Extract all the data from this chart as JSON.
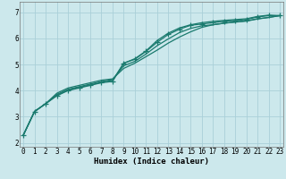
{
  "title": "",
  "xlabel": "Humidex (Indice chaleur)",
  "ylabel": "",
  "background_color": "#cce8ec",
  "grid_color": "#aad0d8",
  "line_color": "#1a7a6e",
  "x_ticks": [
    0,
    1,
    2,
    3,
    4,
    5,
    6,
    7,
    8,
    9,
    10,
    11,
    12,
    13,
    14,
    15,
    16,
    17,
    18,
    19,
    20,
    21,
    22,
    23
  ],
  "y_ticks": [
    2,
    3,
    4,
    5,
    6,
    7
  ],
  "xlim": [
    -0.3,
    23.3
  ],
  "ylim": [
    1.85,
    7.4
  ],
  "series": [
    [
      2.3,
      3.2,
      3.5,
      3.8,
      4.0,
      4.1,
      4.2,
      4.3,
      4.35,
      5.05,
      5.2,
      5.5,
      5.85,
      6.15,
      6.35,
      6.5,
      6.55,
      6.6,
      6.65,
      6.68,
      6.72,
      6.82,
      6.87,
      6.87
    ],
    [
      2.3,
      3.2,
      3.5,
      3.9,
      4.1,
      4.2,
      4.3,
      4.4,
      4.45,
      4.85,
      5.05,
      5.3,
      5.55,
      5.82,
      6.05,
      6.25,
      6.42,
      6.52,
      6.58,
      6.63,
      6.67,
      6.75,
      6.8,
      6.87
    ],
    [
      2.3,
      3.2,
      3.5,
      3.85,
      4.05,
      4.15,
      4.25,
      4.35,
      4.42,
      4.95,
      5.12,
      5.4,
      5.72,
      5.98,
      6.22,
      6.38,
      6.48,
      6.52,
      6.58,
      6.62,
      6.66,
      6.74,
      6.8,
      6.87
    ],
    [
      2.3,
      3.2,
      3.5,
      3.82,
      4.02,
      4.12,
      4.22,
      4.32,
      4.39,
      5.05,
      5.22,
      5.52,
      5.92,
      6.2,
      6.4,
      6.52,
      6.6,
      6.65,
      6.69,
      6.72,
      6.75,
      6.84,
      6.89,
      6.87
    ]
  ],
  "marker_series": [
    0
  ],
  "marker": "+",
  "marker_size": 4,
  "marker_linewidth": 0.9,
  "line_width": 0.9,
  "tick_fontsize": 5.5,
  "xlabel_fontsize": 6.5
}
